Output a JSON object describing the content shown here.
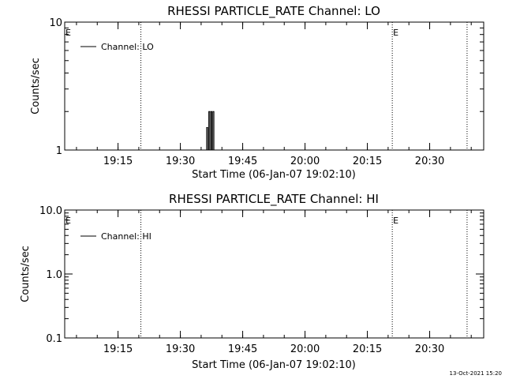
{
  "footer": {
    "date_stamp": "13-Oct-2021 15:20"
  },
  "chart_data": [
    {
      "type": "line",
      "title": "RHESSI PARTICLE_RATE Channel: LO",
      "xlabel": "Start Time (06-Jan-07 19:02:10)",
      "ylabel": "Counts/sec",
      "yscale": "log",
      "ylim": [
        1,
        10
      ],
      "yticks": [
        {
          "value": 1,
          "label": "1"
        },
        {
          "value": 10,
          "label": "10"
        }
      ],
      "xlim": [
        "19:02:10",
        "20:43:00"
      ],
      "xticks": [
        "19:15",
        "19:30",
        "19:45",
        "20:00",
        "20:15",
        "20:30"
      ],
      "legend": {
        "label": "Channel: LO",
        "placement": "top-left"
      },
      "grid": false,
      "markers": [
        {
          "time": "19:02:10",
          "label": "E"
        },
        {
          "time": "19:20:30",
          "label": ""
        },
        {
          "time": "20:21:00",
          "label": "E"
        },
        {
          "time": "20:39:00",
          "label": ""
        }
      ],
      "series": [
        {
          "name": "Channel: LO",
          "points": [
            [
              "19:36:20",
              1
            ],
            [
              "19:36:20",
              1.5
            ],
            [
              "19:36:35",
              1.5
            ],
            [
              "19:36:35",
              1
            ],
            [
              "19:36:50",
              1
            ],
            [
              "19:36:50",
              2
            ],
            [
              "19:37:05",
              2
            ],
            [
              "19:37:05",
              1
            ],
            [
              "19:37:20",
              1
            ],
            [
              "19:37:20",
              2
            ],
            [
              "19:37:35",
              2
            ],
            [
              "19:37:35",
              1
            ],
            [
              "19:37:50",
              1
            ],
            [
              "19:37:50",
              2
            ],
            [
              "19:38:05",
              2
            ],
            [
              "19:38:05",
              1
            ]
          ]
        }
      ]
    },
    {
      "type": "line",
      "title": "RHESSI PARTICLE_RATE Channel: HI",
      "xlabel": "Start Time (06-Jan-07 19:02:10)",
      "ylabel": "Counts/sec",
      "yscale": "log",
      "ylim": [
        0.1,
        10
      ],
      "yticks": [
        {
          "value": 0.1,
          "label": "0.1"
        },
        {
          "value": 1,
          "label": "1.0"
        },
        {
          "value": 10,
          "label": "10.0"
        }
      ],
      "xlim": [
        "19:02:10",
        "20:43:00"
      ],
      "xticks": [
        "19:15",
        "19:30",
        "19:45",
        "20:00",
        "20:15",
        "20:30"
      ],
      "legend": {
        "label": "Channel: HI",
        "placement": "top-left"
      },
      "grid": false,
      "markers": [
        {
          "time": "19:02:10",
          "label": "E"
        },
        {
          "time": "19:20:30",
          "label": ""
        },
        {
          "time": "20:21:00",
          "label": "E"
        },
        {
          "time": "20:39:00",
          "label": ""
        }
      ],
      "series": [
        {
          "name": "Channel: HI",
          "points": []
        }
      ]
    }
  ]
}
